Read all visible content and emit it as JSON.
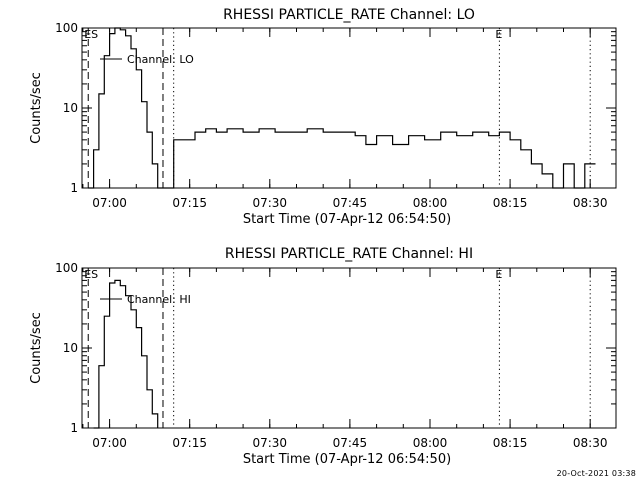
{
  "footer": {
    "timestamp": "20-Oct-2021 03:38"
  },
  "chart_data": [
    {
      "type": "line",
      "title": "RHESSI PARTICLE_RATE Channel: LO",
      "xlabel": "Start Time (07-Apr-12 06:54:50)",
      "ylabel": "Counts/sec",
      "yscale": "log",
      "ylim": [
        1,
        100
      ],
      "xlim": [
        "06:54:50",
        "08:34:50"
      ],
      "x_tick_labels": [
        "07:00",
        "07:15",
        "07:30",
        "07:45",
        "08:00",
        "08:15",
        "08:30"
      ],
      "y_tick_labels": [
        "1",
        "10",
        "100"
      ],
      "grid": false,
      "legend": {
        "label": "Channel: LO",
        "position": "top-left"
      },
      "markers": [
        {
          "label": "ES",
          "time": "06:56",
          "style": "dashed"
        },
        {
          "label": "",
          "time": "07:10",
          "style": "dashed"
        },
        {
          "label": "",
          "time": "07:12",
          "style": "dotted"
        },
        {
          "label": "E",
          "time": "08:13",
          "style": "dotted"
        },
        {
          "label": "",
          "time": "08:30",
          "style": "dotted"
        }
      ],
      "series": [
        {
          "name": "Channel: LO",
          "x": [
            "06:56",
            "06:57",
            "06:58",
            "06:59",
            "07:00",
            "07:01",
            "07:02",
            "07:03",
            "07:04",
            "07:05",
            "07:06",
            "07:07",
            "07:08",
            "07:09",
            "07:10",
            "07:11",
            "07:12",
            "07:14",
            "07:16",
            "07:18",
            "07:20",
            "07:22",
            "07:25",
            "07:28",
            "07:31",
            "07:34",
            "07:37",
            "07:40",
            "07:43",
            "07:46",
            "07:48",
            "07:50",
            "07:53",
            "07:56",
            "07:59",
            "08:02",
            "08:05",
            "08:08",
            "08:11",
            "08:13",
            "08:15",
            "08:17",
            "08:19",
            "08:21",
            "08:23",
            "08:25",
            "08:27",
            "08:29",
            "08:31"
          ],
          "y": [
            1,
            3,
            15,
            45,
            85,
            100,
            95,
            80,
            55,
            30,
            12,
            5,
            2,
            1,
            1,
            1,
            4,
            4,
            5,
            5.5,
            5,
            5.5,
            5,
            5.5,
            5,
            5,
            5.5,
            5,
            5,
            4.5,
            3.5,
            4.5,
            3.5,
            4.5,
            4,
            5,
            4.5,
            5,
            4.5,
            5,
            4,
            3,
            2,
            1.5,
            1,
            2,
            1,
            2,
            2
          ]
        }
      ]
    },
    {
      "type": "line",
      "title": "RHESSI PARTICLE_RATE Channel: HI",
      "xlabel": "Start Time (07-Apr-12 06:54:50)",
      "ylabel": "Counts/sec",
      "yscale": "log",
      "ylim": [
        1,
        100
      ],
      "xlim": [
        "06:54:50",
        "08:34:50"
      ],
      "x_tick_labels": [
        "07:00",
        "07:15",
        "07:30",
        "07:45",
        "08:00",
        "08:15",
        "08:30"
      ],
      "y_tick_labels": [
        "1",
        "10",
        "100"
      ],
      "grid": false,
      "legend": {
        "label": "Channel: HI",
        "position": "top-left"
      },
      "markers": [
        {
          "label": "ES",
          "time": "06:56",
          "style": "dashed"
        },
        {
          "label": "",
          "time": "07:10",
          "style": "dashed"
        },
        {
          "label": "",
          "time": "07:12",
          "style": "dotted"
        },
        {
          "label": "E",
          "time": "08:13",
          "style": "dotted"
        },
        {
          "label": "",
          "time": "08:30",
          "style": "dotted"
        }
      ],
      "series": [
        {
          "name": "Channel: HI",
          "x": [
            "06:57",
            "06:58",
            "06:59",
            "07:00",
            "07:01",
            "07:02",
            "07:03",
            "07:04",
            "07:05",
            "07:06",
            "07:07",
            "07:08",
            "07:09"
          ],
          "y": [
            1,
            6,
            25,
            65,
            70,
            60,
            45,
            30,
            18,
            8,
            3,
            1.5,
            1
          ]
        }
      ]
    }
  ]
}
